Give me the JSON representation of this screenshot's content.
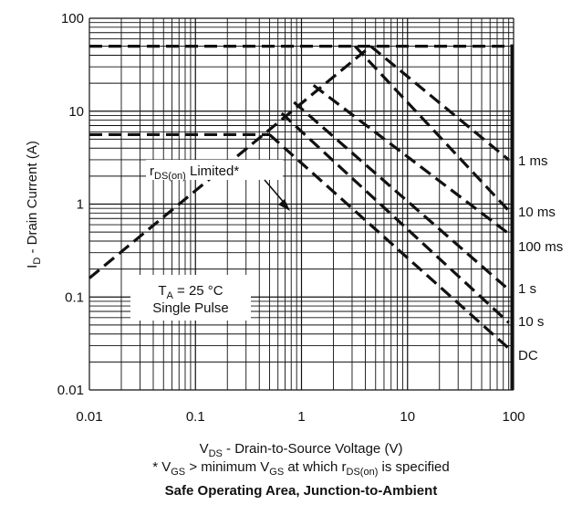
{
  "chart_data": {
    "type": "line",
    "title": "Safe Operating Area, Junction-to-Ambient",
    "xlabel": {
      "main": "V",
      "sub": "DS",
      "rest": " - Drain-to-Source Voltage (V)"
    },
    "ylabel": {
      "main": "I",
      "sub": "D",
      "rest": " - Drain Current (A)"
    },
    "footnote": {
      "p1": "* V",
      "s1": "GS",
      "p2": " > minimum V",
      "s2": "GS",
      "p3": " at which r",
      "s3": "DS(on)",
      "p4": " is specified"
    },
    "x_scale": "log",
    "y_scale": "log",
    "xlim": [
      0.01,
      100
    ],
    "ylim": [
      0.01,
      100
    ],
    "grid": true,
    "x_ticks": [
      "0.01",
      "0.1",
      "1",
      "10",
      "100"
    ],
    "y_ticks": [
      "0.01",
      "0.1",
      "1",
      "10",
      "100"
    ],
    "rds_annotation": {
      "main": "r",
      "sub": "DS(on)",
      "rest": " Limited*"
    },
    "conditions": {
      "line1_main": "T",
      "line1_sub": "A",
      "line1_rest": " = 25 °C",
      "line2": "Single Pulse"
    },
    "limits": {
      "current_pulse": 50,
      "current_dc_region": 5.6
    },
    "series": [
      {
        "name": "r<sub>DS(on)</sub> Limited",
        "x": [
          0.01,
          4.5
        ],
        "y": [
          0.16,
          50
        ]
      },
      {
        "name": "1 ms",
        "x": [
          4.5,
          90
        ],
        "y": [
          50,
          3
        ]
      },
      {
        "name": "10 ms",
        "x": [
          3.2,
          90
        ],
        "y": [
          50,
          0.85
        ]
      },
      {
        "name": "100 ms",
        "x": [
          1.3,
          90
        ],
        "y": [
          19,
          0.48
        ]
      },
      {
        "name": "1 s",
        "x": [
          0.85,
          90
        ],
        "y": [
          12.5,
          0.12
        ]
      },
      {
        "name": "10 s",
        "x": [
          0.65,
          90
        ],
        "y": [
          9.5,
          0.053
        ]
      },
      {
        "name": "DC",
        "x": [
          0.5,
          90
        ],
        "y": [
          5.6,
          0.028
        ]
      }
    ],
    "curve_labels": [
      "1 ms",
      "10 ms",
      "100 ms",
      "1 s",
      "10 s",
      "DC"
    ]
  }
}
